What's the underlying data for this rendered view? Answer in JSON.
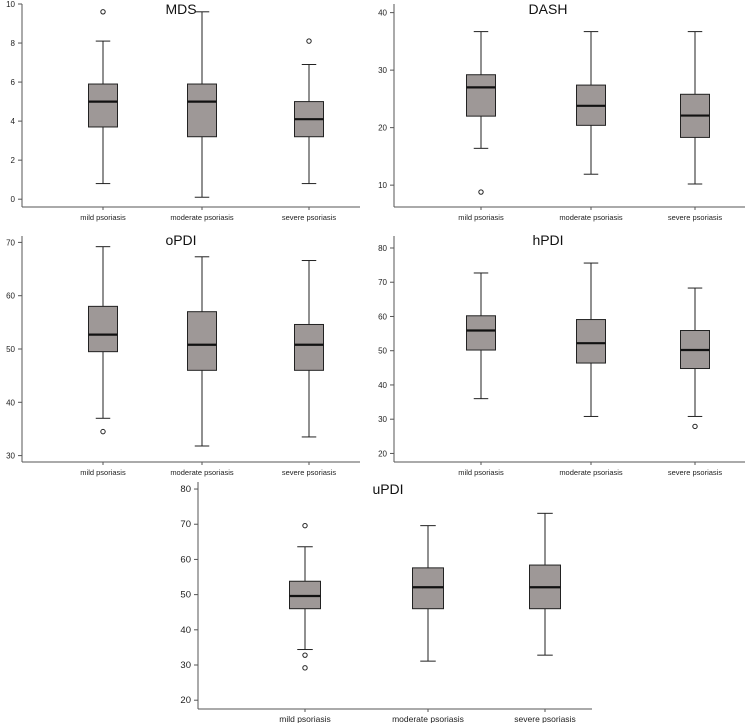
{
  "colors": {
    "box_fill": "#9e9897",
    "axis": "#555555",
    "stroke": "#222222"
  },
  "chart_data": [
    {
      "type": "boxplot",
      "title": "MDS",
      "categories": [
        "mild psoriasis",
        "moderate psoriasis",
        "severe psoriasis"
      ],
      "ylim": [
        -0.4,
        10
      ],
      "yticks": [
        0,
        2,
        4,
        6,
        8,
        10
      ],
      "boxes": [
        {
          "whisker_low": 0.8,
          "q1": 3.7,
          "median": 5.0,
          "q3": 5.9,
          "whisker_high": 8.1,
          "outliers": [
            9.6
          ]
        },
        {
          "whisker_low": 0.1,
          "q1": 3.2,
          "median": 5.0,
          "q3": 5.9,
          "whisker_high": 9.6,
          "outliers": []
        },
        {
          "whisker_low": 0.8,
          "q1": 3.2,
          "median": 4.1,
          "q3": 5.0,
          "whisker_high": 6.9,
          "outliers": [
            8.1
          ]
        }
      ]
    },
    {
      "type": "boxplot",
      "title": "DASH",
      "categories": [
        "mild psoriasis",
        "moderate psoriasis",
        "severe psoriasis"
      ],
      "ylim": [
        6.2,
        41.5
      ],
      "yticks": [
        10,
        20,
        30,
        40
      ],
      "boxes": [
        {
          "whisker_low": 16.4,
          "q1": 22.0,
          "median": 27.0,
          "q3": 29.2,
          "whisker_high": 36.7,
          "outliers": [
            8.8
          ]
        },
        {
          "whisker_low": 11.9,
          "q1": 20.4,
          "median": 23.8,
          "q3": 27.4,
          "whisker_high": 36.7,
          "outliers": []
        },
        {
          "whisker_low": 10.2,
          "q1": 18.3,
          "median": 22.1,
          "q3": 25.8,
          "whisker_high": 36.7,
          "outliers": []
        }
      ]
    },
    {
      "type": "boxplot",
      "title": "oPDI",
      "categories": [
        "mild psoriasis",
        "moderate psoriasis",
        "severe psoriasis"
      ],
      "ylim": [
        28.8,
        71.2
      ],
      "yticks": [
        30,
        40,
        50,
        60,
        70
      ],
      "boxes": [
        {
          "whisker_low": 37.0,
          "q1": 49.5,
          "median": 52.7,
          "q3": 58.0,
          "whisker_high": 69.2,
          "outliers": [
            34.5
          ]
        },
        {
          "whisker_low": 31.8,
          "q1": 46.0,
          "median": 50.8,
          "q3": 57.0,
          "whisker_high": 67.3,
          "outliers": []
        },
        {
          "whisker_low": 33.5,
          "q1": 46.0,
          "median": 50.8,
          "q3": 54.6,
          "whisker_high": 66.6,
          "outliers": []
        }
      ]
    },
    {
      "type": "boxplot",
      "title": "hPDI",
      "categories": [
        "mild psoriasis",
        "moderate psoriasis",
        "severe psoriasis"
      ],
      "ylim": [
        17.5,
        83.5
      ],
      "yticks": [
        20,
        30,
        40,
        50,
        60,
        70,
        80
      ],
      "boxes": [
        {
          "whisker_low": 36.0,
          "q1": 50.2,
          "median": 55.9,
          "q3": 60.2,
          "whisker_high": 72.7,
          "outliers": []
        },
        {
          "whisker_low": 30.8,
          "q1": 46.4,
          "median": 52.2,
          "q3": 59.1,
          "whisker_high": 75.6,
          "outliers": []
        },
        {
          "whisker_low": 30.8,
          "q1": 44.8,
          "median": 50.2,
          "q3": 55.9,
          "whisker_high": 68.3,
          "outliers": [
            27.9
          ]
        }
      ]
    },
    {
      "type": "boxplot",
      "title": "uPDI",
      "categories": [
        "mild psoriasis",
        "moderate psoriasis",
        "severe psoriasis"
      ],
      "ylim": [
        17.5,
        82
      ],
      "yticks": [
        20,
        30,
        40,
        50,
        60,
        70,
        80
      ],
      "boxes": [
        {
          "whisker_low": 34.4,
          "q1": 46.0,
          "median": 49.6,
          "q3": 53.8,
          "whisker_high": 63.6,
          "outliers": [
            69.6,
            32.8,
            29.2
          ]
        },
        {
          "whisker_low": 31.1,
          "q1": 46.0,
          "median": 52.1,
          "q3": 57.6,
          "whisker_high": 69.6,
          "outliers": []
        },
        {
          "whisker_low": 32.8,
          "q1": 46.0,
          "median": 52.1,
          "q3": 58.4,
          "whisker_high": 73.1,
          "outliers": []
        }
      ]
    }
  ]
}
